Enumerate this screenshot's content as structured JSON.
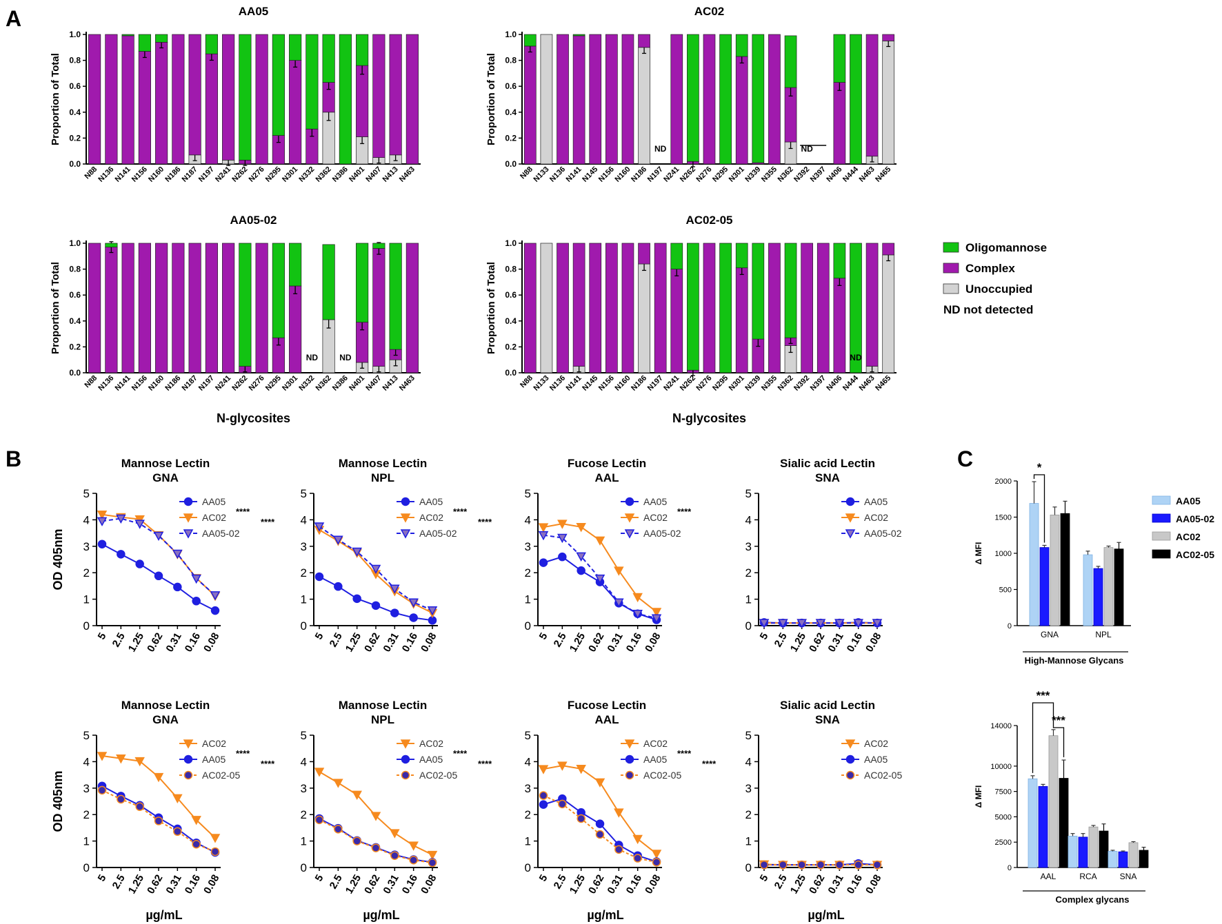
{
  "figure": {
    "panel_labels": [
      "A",
      "B",
      "C"
    ]
  },
  "colors": {
    "oligo": "#12c312",
    "complex": "#a01aad",
    "unoccupied": "#d3d3d3",
    "aa05": "#1f1fe0",
    "ac02": "#f68a1e",
    "light_blue": "#aed3f5",
    "c_blue": "#1a1aff",
    "c_gray": "#c8c8c8",
    "c_black": "#000000"
  },
  "panelA": {
    "ylabel": "Proportion of Total",
    "xlabel": "N-glycosites",
    "yticks": [
      "0.0",
      "0.2",
      "0.4",
      "0.6",
      "0.8",
      "1.0"
    ],
    "legend": [
      {
        "label": "Oligomannose",
        "color": "oligo"
      },
      {
        "label": "Complex",
        "color": "complex"
      },
      {
        "label": "Unoccupied",
        "color": "unoccupied"
      },
      {
        "label": "ND  not detected",
        "color": null
      }
    ]
  },
  "panelB": {
    "ylabel": "OD 405nm",
    "xlabel": "µg/mL",
    "xticks": [
      "5",
      "2.5",
      "1.25",
      "0.62",
      "0.31",
      "0.16",
      "0.08"
    ],
    "yticks": [
      "0",
      "1",
      "2",
      "3",
      "4",
      "5"
    ]
  },
  "panelC": {
    "ylabel": "Δ MFI",
    "legend": [
      "AA05",
      "AA05-02",
      "AC02",
      "AC02-05"
    ],
    "top": {
      "group_label": "High-Mannose Glycans",
      "categories": [
        "GNA",
        "NPL"
      ],
      "yticks": [
        "0",
        "500",
        "1000",
        "1500",
        "2000"
      ],
      "sig": [
        "*"
      ]
    },
    "bottom": {
      "group_label": "Complex glycans",
      "categories": [
        "AAL",
        "RCA",
        "SNA"
      ],
      "yticks": [
        "0",
        "2500",
        "5000",
        "7500",
        "10000",
        "14000"
      ],
      "sig": [
        "***",
        "***"
      ]
    }
  },
  "chart_data": [
    {
      "id": "A1",
      "type": "bar",
      "stacked": true,
      "title": "AA05",
      "categories": [
        "N88",
        "N136",
        "N141",
        "N156",
        "N160",
        "N186",
        "N187",
        "N197",
        "N241",
        "N262",
        "N276",
        "N295",
        "N301",
        "N332",
        "N362",
        "N386",
        "N401",
        "N407",
        "N413",
        "N463"
      ],
      "series": [
        {
          "name": "Unoccupied",
          "values": [
            0,
            0,
            0,
            0,
            0,
            0,
            0.07,
            0,
            0.03,
            0,
            0,
            0,
            0,
            0,
            0.4,
            0,
            0.21,
            0.05,
            0.07,
            0
          ]
        },
        {
          "name": "Complex",
          "values": [
            1,
            1,
            0.99,
            0.87,
            0.94,
            1,
            0.93,
            0.85,
            0.97,
            0.03,
            1,
            0.22,
            0.8,
            0.27,
            0.23,
            0,
            0.55,
            0.95,
            0.93,
            1
          ]
        },
        {
          "name": "Oligomannose",
          "values": [
            0,
            0,
            0.01,
            0.13,
            0.06,
            0,
            0,
            0.15,
            0,
            0.97,
            0,
            0.78,
            0.2,
            0.73,
            0.37,
            1,
            0.24,
            0,
            0,
            0
          ]
        }
      ],
      "nd": [],
      "ylim": [
        0,
        1
      ]
    },
    {
      "id": "A2",
      "type": "bar",
      "stacked": true,
      "title": "AC02",
      "categories": [
        "N88",
        "N133",
        "N136",
        "N141",
        "N145",
        "N156",
        "N160",
        "N186",
        "N197",
        "N241",
        "N262",
        "N276",
        "N295",
        "N301",
        "N339",
        "N355",
        "N362",
        "N392",
        "N397",
        "N406",
        "N444",
        "N463",
        "N465"
      ],
      "series": [
        {
          "name": "Unoccupied",
          "values": [
            0,
            1,
            0,
            0,
            0,
            0,
            0,
            0.9,
            0,
            0,
            0,
            0,
            0,
            0,
            0,
            0,
            0.17,
            0,
            0,
            0,
            0,
            0.06,
            0.95
          ]
        },
        {
          "name": "Complex",
          "values": [
            0.91,
            0,
            1,
            0.99,
            1,
            1,
            1,
            0.1,
            0,
            1,
            0.02,
            1,
            0,
            0.83,
            0.01,
            1,
            0.42,
            0,
            0,
            0.63,
            0,
            0.94,
            0.05
          ]
        },
        {
          "name": "Oligomannose",
          "values": [
            0.09,
            0,
            0,
            0.01,
            0,
            0,
            0,
            0,
            0,
            0,
            0.98,
            0,
            1,
            0.17,
            0.99,
            0,
            0.4,
            0,
            0,
            0.37,
            1,
            0,
            0
          ]
        }
      ],
      "nd": [
        "N197",
        "N392"
      ],
      "ylim": [
        0,
        1
      ]
    },
    {
      "id": "A3",
      "type": "bar",
      "stacked": true,
      "title": "AA05-02",
      "categories": [
        "N88",
        "N136",
        "N141",
        "N156",
        "N160",
        "N186",
        "N187",
        "N197",
        "N241",
        "N262",
        "N276",
        "N295",
        "N301",
        "N332",
        "N362",
        "N386",
        "N401",
        "N407",
        "N413",
        "N463"
      ],
      "series": [
        {
          "name": "Unoccupied",
          "values": [
            0,
            0,
            0,
            0,
            0,
            0,
            0,
            0,
            0,
            0,
            0,
            0,
            0,
            0,
            0.41,
            0,
            0.08,
            0.05,
            0.1,
            0
          ]
        },
        {
          "name": "Complex",
          "values": [
            1,
            0.97,
            1,
            1,
            1,
            1,
            1,
            1,
            1,
            0.05,
            1,
            0.27,
            0.67,
            0,
            0,
            0,
            0.31,
            0.91,
            0.08,
            1
          ]
        },
        {
          "name": "Oligomannose",
          "values": [
            0,
            0.03,
            0,
            0,
            0,
            0,
            0,
            0,
            0,
            0.95,
            0,
            0.73,
            0.33,
            0,
            0.58,
            0,
            0.61,
            0.04,
            0.82,
            0
          ]
        }
      ],
      "nd": [
        "N332",
        "N386"
      ],
      "ylim": [
        0,
        1
      ]
    },
    {
      "id": "A4",
      "type": "bar",
      "stacked": true,
      "title": "AC02-05",
      "categories": [
        "N88",
        "N133",
        "N136",
        "N141",
        "N145",
        "N156",
        "N160",
        "N186",
        "N197",
        "N241",
        "N262",
        "N276",
        "N295",
        "N301",
        "N339",
        "N355",
        "N362",
        "N392",
        "N397",
        "N406",
        "N444",
        "N463",
        "N465"
      ],
      "series": [
        {
          "name": "Unoccupied",
          "values": [
            0,
            1,
            0,
            0.05,
            0,
            0,
            0,
            0.84,
            0,
            0,
            0,
            0,
            0,
            0,
            0,
            0,
            0.21,
            0,
            0,
            0,
            0,
            0.05,
            0.91
          ]
        },
        {
          "name": "Complex",
          "values": [
            1,
            0,
            1,
            0.95,
            1,
            1,
            1,
            0.16,
            1,
            0.8,
            0.02,
            1,
            0,
            0.81,
            0.26,
            1,
            0.06,
            1,
            1,
            0.73,
            0,
            0.95,
            0.09
          ]
        },
        {
          "name": "Oligomannose",
          "values": [
            0,
            0,
            0,
            0,
            0,
            0,
            0,
            0,
            0,
            0.2,
            0.98,
            0,
            1,
            0.19,
            0.74,
            0,
            0.73,
            0,
            0,
            0.27,
            1,
            0,
            0
          ]
        }
      ],
      "nd": [
        "N444"
      ],
      "ylim": [
        0,
        1
      ]
    },
    {
      "id": "B1",
      "type": "line",
      "title": [
        "Mannose Lectin",
        "GNA"
      ],
      "x": [
        5,
        2.5,
        1.25,
        0.62,
        0.31,
        0.16,
        0.08
      ],
      "ylim": [
        0,
        5
      ],
      "series": [
        {
          "name": "AA05",
          "style": "aa05",
          "values": [
            3.08,
            2.7,
            2.33,
            1.88,
            1.46,
            0.93,
            0.57
          ]
        },
        {
          "name": "AC02",
          "style": "ac02",
          "sig": "****",
          "values": [
            4.2,
            4.1,
            4.02,
            3.42,
            2.7,
            1.8,
            1.12
          ]
        },
        {
          "name": "AA05-02",
          "style": "aa0502",
          "sig": "****",
          "values": [
            3.95,
            4.05,
            3.85,
            3.4,
            2.72,
            1.78,
            1.15
          ]
        }
      ]
    },
    {
      "id": "B2",
      "type": "line",
      "title": [
        "Mannose Lectin",
        "NPL"
      ],
      "x": [
        5,
        2.5,
        1.25,
        0.62,
        0.31,
        0.16,
        0.08
      ],
      "ylim": [
        0,
        5
      ],
      "series": [
        {
          "name": "AA05",
          "style": "aa05",
          "values": [
            1.85,
            1.48,
            1.02,
            0.76,
            0.48,
            0.3,
            0.2
          ]
        },
        {
          "name": "AC02",
          "style": "ac02",
          "sig": "****",
          "values": [
            3.62,
            3.2,
            2.75,
            1.95,
            1.3,
            0.83,
            0.48
          ]
        },
        {
          "name": "AA05-02",
          "style": "aa0502",
          "sig": "****",
          "values": [
            3.75,
            3.25,
            2.8,
            2.15,
            1.4,
            0.88,
            0.58
          ]
        }
      ]
    },
    {
      "id": "B3",
      "type": "line",
      "title": [
        "Fucose Lectin",
        "AAL"
      ],
      "x": [
        5,
        2.5,
        1.25,
        0.62,
        0.31,
        0.16,
        0.08
      ],
      "ylim": [
        0,
        5
      ],
      "series": [
        {
          "name": "AA05",
          "style": "aa05",
          "values": [
            2.38,
            2.6,
            2.08,
            1.65,
            0.85,
            0.45,
            0.22
          ]
        },
        {
          "name": "AC02",
          "style": "ac02",
          "sig": "****",
          "values": [
            3.72,
            3.85,
            3.73,
            3.22,
            2.08,
            1.08,
            0.52
          ]
        },
        {
          "name": "AA05-02",
          "style": "aa0502",
          "values": [
            3.42,
            3.32,
            2.62,
            1.78,
            0.88,
            0.45,
            0.28
          ]
        }
      ]
    },
    {
      "id": "B4",
      "type": "line",
      "title": [
        "Sialic acid Lectin",
        "SNA"
      ],
      "x": [
        5,
        2.5,
        1.25,
        0.62,
        0.31,
        0.16,
        0.08
      ],
      "ylim": [
        0,
        5
      ],
      "series": [
        {
          "name": "AA05",
          "style": "aa05",
          "values": [
            0.12,
            0.1,
            0.1,
            0.1,
            0.1,
            0.12,
            0.1
          ]
        },
        {
          "name": "AC02",
          "style": "ac02",
          "values": [
            0.1,
            0.1,
            0.1,
            0.1,
            0.1,
            0.1,
            0.1
          ]
        },
        {
          "name": "AA05-02",
          "style": "aa0502",
          "values": [
            0.1,
            0.1,
            0.1,
            0.1,
            0.1,
            0.1,
            0.1
          ]
        }
      ]
    },
    {
      "id": "B5",
      "type": "line",
      "title": [
        "Mannose Lectin",
        "GNA"
      ],
      "x": [
        5,
        2.5,
        1.25,
        0.62,
        0.31,
        0.16,
        0.08
      ],
      "ylim": [
        0,
        5
      ],
      "series": [
        {
          "name": "AC02",
          "style": "ac02",
          "values": [
            4.22,
            4.12,
            4.02,
            3.42,
            2.62,
            1.8,
            1.12
          ]
        },
        {
          "name": "AA05",
          "style": "aa05",
          "sig": "****",
          "values": [
            3.08,
            2.7,
            2.35,
            1.88,
            1.46,
            0.93,
            0.57
          ]
        },
        {
          "name": "AC02-05",
          "style": "ac0205",
          "sig": "****",
          "values": [
            2.92,
            2.58,
            2.3,
            1.76,
            1.36,
            0.88,
            0.6
          ]
        }
      ]
    },
    {
      "id": "B6",
      "type": "line",
      "title": [
        "Mannose Lectin",
        "NPL"
      ],
      "x": [
        5,
        2.5,
        1.25,
        0.62,
        0.31,
        0.16,
        0.08
      ],
      "ylim": [
        0,
        5
      ],
      "series": [
        {
          "name": "AC02",
          "style": "ac02",
          "values": [
            3.62,
            3.2,
            2.75,
            1.95,
            1.3,
            0.83,
            0.48
          ]
        },
        {
          "name": "AA05",
          "style": "aa05",
          "sig": "****",
          "values": [
            1.85,
            1.48,
            1.02,
            0.76,
            0.48,
            0.3,
            0.2
          ]
        },
        {
          "name": "AC02-05",
          "style": "ac0205",
          "sig": "****",
          "values": [
            1.8,
            1.45,
            1.0,
            0.74,
            0.45,
            0.28,
            0.18
          ]
        }
      ]
    },
    {
      "id": "B7",
      "type": "line",
      "title": [
        "Fucose Lectin",
        "AAL"
      ],
      "x": [
        5,
        2.5,
        1.25,
        0.62,
        0.31,
        0.16,
        0.08
      ],
      "ylim": [
        0,
        5
      ],
      "series": [
        {
          "name": "AC02",
          "style": "ac02",
          "values": [
            3.72,
            3.85,
            3.73,
            3.22,
            2.08,
            1.08,
            0.52
          ]
        },
        {
          "name": "AA05",
          "style": "aa05",
          "sig": "****",
          "values": [
            2.38,
            2.6,
            2.08,
            1.65,
            0.85,
            0.45,
            0.22
          ]
        },
        {
          "name": "AC02-05",
          "style": "ac0205",
          "sig": "****",
          "values": [
            2.72,
            2.4,
            1.85,
            1.25,
            0.68,
            0.35,
            0.2
          ]
        }
      ]
    },
    {
      "id": "B8",
      "type": "line",
      "title": [
        "Sialic acid Lectin",
        "SNA"
      ],
      "x": [
        5,
        2.5,
        1.25,
        0.62,
        0.31,
        0.16,
        0.08
      ],
      "ylim": [
        0,
        5
      ],
      "series": [
        {
          "name": "AC02",
          "style": "ac02",
          "values": [
            0.12,
            0.1,
            0.1,
            0.1,
            0.1,
            0.12,
            0.1
          ]
        },
        {
          "name": "AA05",
          "style": "aa05",
          "values": [
            0.1,
            0.1,
            0.1,
            0.1,
            0.1,
            0.15,
            0.1
          ]
        },
        {
          "name": "AC02-05",
          "style": "ac0205",
          "values": [
            0.1,
            0.1,
            0.1,
            0.1,
            0.1,
            0.1,
            0.1
          ]
        }
      ]
    },
    {
      "id": "C1",
      "type": "bar",
      "ylim": [
        0,
        2000
      ],
      "categories": [
        "GNA",
        "NPL"
      ],
      "series": [
        {
          "name": "AA05",
          "values": [
            1690,
            980
          ],
          "err": [
            300,
            50
          ]
        },
        {
          "name": "AA05-02",
          "values": [
            1080,
            790
          ],
          "err": [
            30,
            30
          ]
        },
        {
          "name": "AC02",
          "values": [
            1530,
            1080
          ],
          "err": [
            110,
            20
          ]
        },
        {
          "name": "AC02-05",
          "values": [
            1550,
            1060
          ],
          "err": [
            170,
            90
          ]
        }
      ]
    },
    {
      "id": "C2",
      "type": "bar",
      "ylim": [
        0,
        14000
      ],
      "categories": [
        "AAL",
        "RCA",
        "SNA"
      ],
      "series": [
        {
          "name": "AA05",
          "values": [
            8750,
            3100,
            1600
          ],
          "err": [
            300,
            250,
            100
          ]
        },
        {
          "name": "AA05-02",
          "values": [
            8000,
            3000,
            1550
          ],
          "err": [
            200,
            350,
            80
          ]
        },
        {
          "name": "AC02",
          "values": [
            13000,
            4000,
            2450
          ],
          "err": [
            600,
            150,
            100
          ]
        },
        {
          "name": "AC02-05",
          "values": [
            8800,
            3600,
            1700
          ],
          "err": [
            1800,
            700,
            300
          ]
        }
      ]
    }
  ]
}
